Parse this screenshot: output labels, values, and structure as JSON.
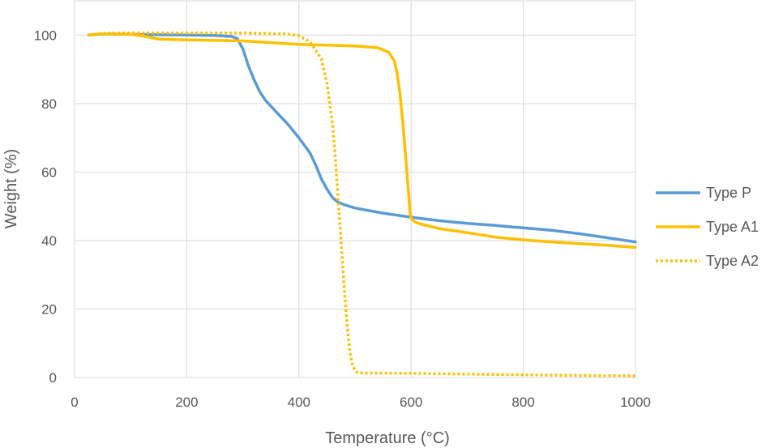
{
  "chart_data": {
    "type": "line",
    "title": "",
    "xlabel": "Temperature (°C)",
    "ylabel": "Weight (%)",
    "xlim": [
      0,
      1000
    ],
    "ylim": [
      0,
      110
    ],
    "xticks": [
      0,
      200,
      400,
      600,
      800,
      1000
    ],
    "yticks": [
      0,
      20,
      40,
      60,
      80,
      100
    ],
    "grid": true,
    "legend_position": "right",
    "series": [
      {
        "name": "Type P",
        "color": "#5B9BD5",
        "dash": "solid",
        "x": [
          25,
          50,
          100,
          150,
          200,
          250,
          280,
          290,
          300,
          310,
          320,
          330,
          340,
          360,
          380,
          400,
          420,
          430,
          440,
          450,
          460,
          470,
          480,
          500,
          550,
          600,
          650,
          700,
          750,
          800,
          850,
          900,
          950,
          1000
        ],
        "y": [
          100,
          100.3,
          100.2,
          100.1,
          100,
          99.9,
          99.6,
          99,
          96,
          91,
          87,
          83.5,
          81,
          77.5,
          74,
          70,
          65.5,
          62,
          58,
          55,
          52.5,
          51.2,
          50.5,
          49.5,
          48,
          46.8,
          45.8,
          45,
          44.4,
          43.7,
          43,
          42,
          40.8,
          39.6
        ]
      },
      {
        "name": "Type A1",
        "color": "#FFC000",
        "dash": "solid",
        "x": [
          25,
          50,
          100,
          120,
          150,
          200,
          300,
          400,
          500,
          540,
          560,
          570,
          575,
          580,
          585,
          590,
          595,
          598,
          600,
          605,
          610,
          620,
          650,
          700,
          750,
          800,
          850,
          900,
          950,
          1000
        ],
        "y": [
          100,
          100.4,
          100.2,
          99.8,
          98.8,
          98.6,
          98.3,
          97.3,
          96.8,
          96.3,
          95,
          92.5,
          89,
          83,
          75,
          65,
          55,
          48.5,
          46.5,
          45.6,
          45.2,
          44.7,
          43.5,
          42.3,
          41,
          40.2,
          39.6,
          39.1,
          38.6,
          38
        ]
      },
      {
        "name": "Type A2",
        "color": "#FFC000",
        "dash": "dotted",
        "x": [
          25,
          50,
          100,
          200,
          300,
          380,
          400,
          420,
          440,
          450,
          460,
          465,
          470,
          475,
          480,
          485,
          490,
          495,
          500,
          505,
          510,
          520,
          600,
          700,
          800,
          900,
          1000
        ],
        "y": [
          100,
          100.5,
          100.6,
          100.6,
          100.6,
          100.3,
          99.8,
          98,
          93,
          86,
          74,
          64,
          52,
          40,
          28,
          17,
          8.5,
          4,
          2,
          1.4,
          1.3,
          1.3,
          1.2,
          1,
          0.8,
          0.6,
          0.5
        ]
      }
    ]
  }
}
